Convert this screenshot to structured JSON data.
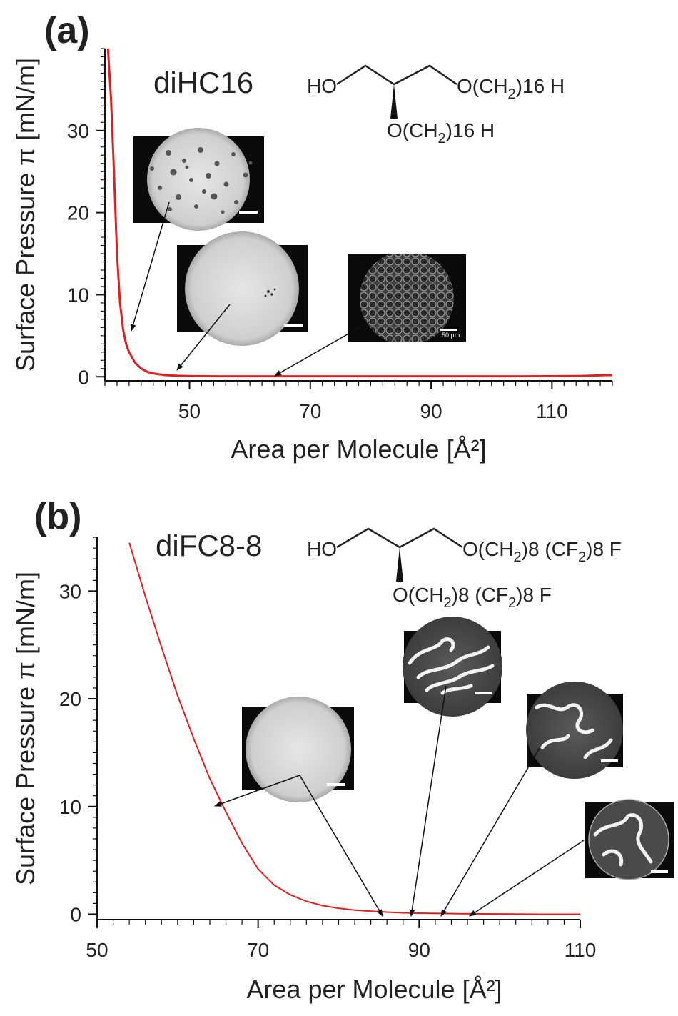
{
  "chart_data": [
    {
      "panel": "(a)",
      "type": "line",
      "title": "diHC16",
      "xlabel": "Area per Molecule [Å²]",
      "ylabel": "Surface Pressure π [mN/m]",
      "xlim": [
        36,
        120
      ],
      "ylim": [
        -0.5,
        40
      ],
      "x_ticks": [
        50,
        70,
        90,
        110
      ],
      "y_ticks": [
        0,
        10,
        20,
        30
      ],
      "series_color": "#e02020",
      "series": [
        {
          "x": [
            36.5,
            37.0,
            37.5,
            38.0,
            38.5,
            39.0,
            39.5,
            40.0,
            41.0,
            42.0,
            43.0,
            44.0,
            46.0,
            48.0,
            50.0,
            55.0,
            60.0,
            65.0,
            70.0,
            75.0,
            80.0,
            85.0,
            90.0,
            95.0,
            100.0,
            105.0,
            110.0,
            115.0,
            119.0,
            120.0
          ],
          "y": [
            40.0,
            34.0,
            25.0,
            15.0,
            9.0,
            5.8,
            4.0,
            3.0,
            1.7,
            1.0,
            0.6,
            0.4,
            0.2,
            0.12,
            0.08,
            0.05,
            0.05,
            0.05,
            0.05,
            0.05,
            0.05,
            0.05,
            0.05,
            0.05,
            0.05,
            0.05,
            0.07,
            0.1,
            0.2,
            0.2
          ]
        }
      ],
      "annotations": [
        {
          "arrow_to": [
            38.8,
            5.5
          ]
        },
        {
          "arrow_to": [
            47,
            0.5
          ]
        },
        {
          "arrow_to": [
            63,
            0.05
          ],
          "scale_bar_label": "50 µm"
        }
      ],
      "structure": {
        "ho": "HO",
        "o_chain_main": "O(CH",
        "o_chain_sub": "2",
        "o_chain_rest": ")16 H",
        "o_branch_main": "O(CH",
        "o_branch_sub": "2",
        "o_branch_rest": ")16 H"
      }
    },
    {
      "panel": "(b)",
      "type": "line",
      "title": "diFC8-8",
      "xlabel": "Area per Molecule [Å²]",
      "ylabel": "Surface Pressure π [mN/m]",
      "xlim": [
        50,
        110
      ],
      "ylim": [
        -0.5,
        35
      ],
      "x_ticks": [
        50,
        70,
        90,
        110
      ],
      "y_ticks": [
        0,
        10,
        20,
        30
      ],
      "series_color": "#e02020",
      "series": [
        {
          "x": [
            54,
            56,
            58,
            60,
            62,
            64,
            66,
            68,
            70,
            72,
            74,
            76,
            78,
            80,
            82,
            84,
            86,
            88,
            90,
            95,
            100,
            105,
            110
          ],
          "y": [
            34.5,
            29.5,
            24.8,
            20.3,
            16.3,
            12.6,
            9.5,
            6.6,
            4.2,
            2.7,
            1.8,
            1.2,
            0.8,
            0.55,
            0.38,
            0.28,
            0.2,
            0.13,
            0.1,
            0.05,
            0.02,
            0.0,
            0.0
          ]
        }
      ],
      "annotations": [
        {
          "arrow_to": [
            64.5,
            10.2
          ]
        },
        {
          "arrow_to": [
            85.5,
            0.15
          ]
        },
        {
          "arrow_to": [
            88.5,
            0.1
          ]
        },
        {
          "arrow_to": [
            92.5,
            0.1
          ]
        },
        {
          "arrow_to": [
            96,
            0.1
          ]
        }
      ],
      "structure": {
        "ho": "HO",
        "o_chain_main": "O(CH",
        "o_chain_sub1": "2",
        "o_chain_mid": ")8 (CF",
        "o_chain_sub2": "2",
        "o_chain_rest": ")8 F",
        "o_branch_main": "O(CH",
        "o_branch_sub1": "2",
        "o_branch_mid": ")8 (CF",
        "o_branch_sub2": "2",
        "o_branch_rest": ")8 F"
      }
    }
  ],
  "y_tick_text": [
    "0",
    "10",
    "20",
    "30"
  ],
  "x_tick_text": [
    "50",
    "70",
    "90",
    "110"
  ]
}
